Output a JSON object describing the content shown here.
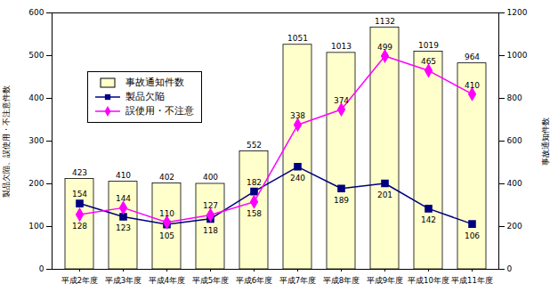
{
  "chart_data": {
    "type": "bar",
    "categories": [
      "平成2年度",
      "平成3年度",
      "平成4年度",
      "平成5年度",
      "平成6年度",
      "平成7年度",
      "平成8年度",
      "平成9年度",
      "平成10年度",
      "平成11年度"
    ],
    "series": [
      {
        "name": "事故通知件数",
        "type": "bar",
        "axis": "y2",
        "color": "#ffffcc",
        "values": [
          423,
          410,
          402,
          400,
          552,
          1051,
          1013,
          1132,
          1019,
          964
        ]
      },
      {
        "name": "製品欠陥",
        "type": "line",
        "color": "#000080",
        "marker": "square",
        "values": [
          154,
          123,
          105,
          118,
          182,
          240,
          189,
          201,
          142,
          106
        ]
      },
      {
        "name": "誤使用・不注意",
        "type": "line",
        "color": "#ff00ff",
        "marker": "diamond",
        "values": [
          128,
          144,
          110,
          127,
          158,
          338,
          374,
          499,
          465,
          410
        ]
      }
    ],
    "ylabel": "製品欠陥、誤使用・不注意件数",
    "y2label": "事故通知件数",
    "ylim": [
      0,
      600
    ],
    "yticks": [
      0,
      100,
      200,
      300,
      400,
      500,
      600
    ],
    "y2lim": [
      0,
      1200
    ],
    "y2ticks": [
      0,
      200,
      400,
      600,
      800,
      1000,
      1200
    ],
    "data_labels": true,
    "legend": "upper left",
    "grid": false
  }
}
